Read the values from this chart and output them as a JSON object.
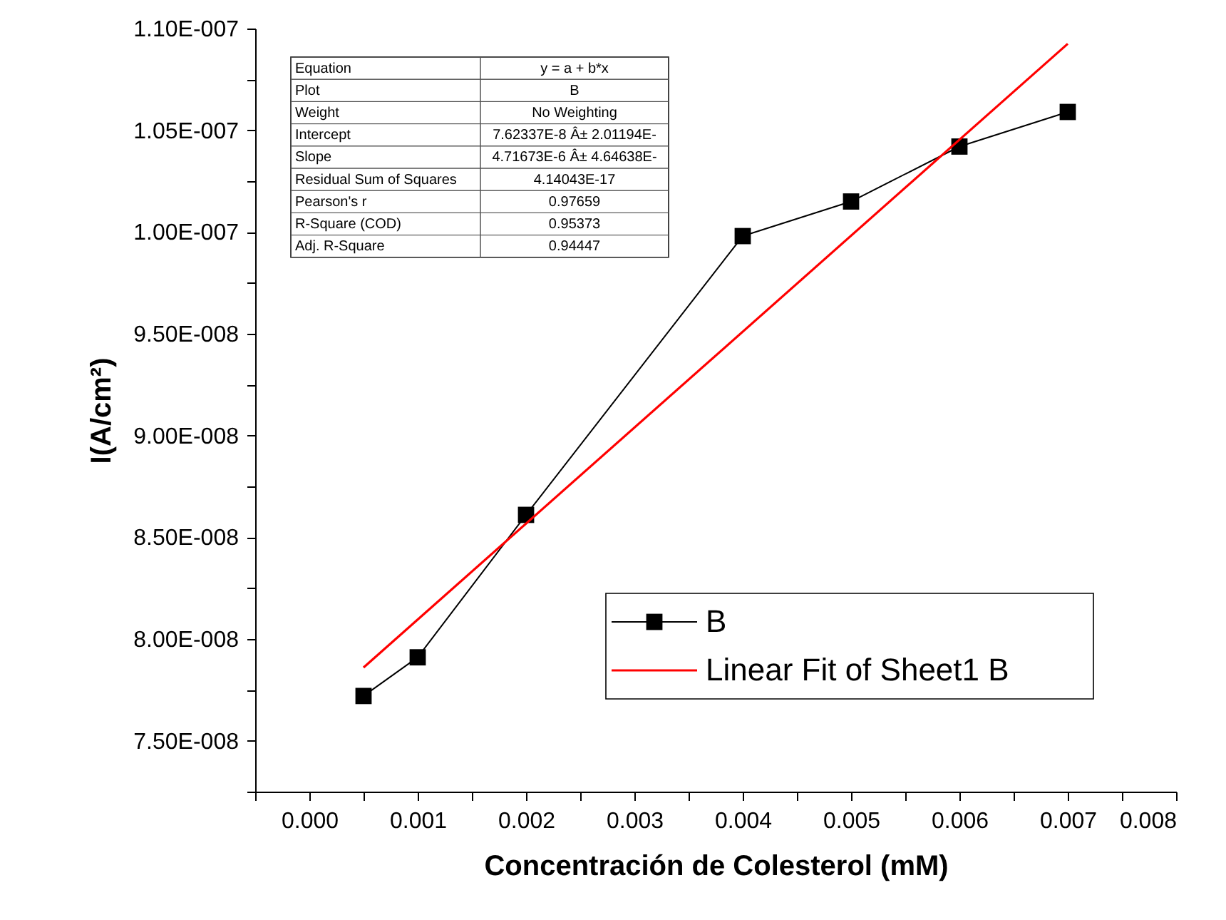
{
  "chart_data": {
    "type": "line",
    "xlabel": "Concentración de Colesterol (mM)",
    "ylabel": "I(A/cm²)",
    "x": [
      0.0005,
      0.001,
      0.002,
      0.004,
      0.005,
      0.006,
      0.007
    ],
    "series": [
      {
        "name": "B",
        "color": "#000000",
        "values": [
          7.72e-08,
          7.91e-08,
          8.61e-08,
          9.98e-08,
          1.015e-07,
          1.042e-07,
          1.059e-07
        ],
        "marker": "square",
        "line_style": "solid"
      },
      {
        "name": "Linear Fit of Sheet1 B",
        "color": "#ff0000",
        "type": "line",
        "x": [
          0.0005,
          0.007
        ],
        "values": [
          7.86e-08,
          1.0925e-07
        ],
        "marker": "none",
        "line_style": "solid"
      }
    ],
    "xlim": [
      -0.0005,
      0.008
    ],
    "xticks": [
      {
        "value": -0.0005,
        "label": null
      },
      {
        "value": 0,
        "label": "0.000"
      },
      {
        "value": 0.0005,
        "label": null
      },
      {
        "value": 0.001,
        "label": "0.001"
      },
      {
        "value": 0.0015,
        "label": null
      },
      {
        "value": 0.002,
        "label": "0.002"
      },
      {
        "value": 0.0025,
        "label": null
      },
      {
        "value": 0.003,
        "label": "0.003"
      },
      {
        "value": 0.0035,
        "label": null
      },
      {
        "value": 0.004,
        "label": "0.004"
      },
      {
        "value": 0.0045,
        "label": null
      },
      {
        "value": 0.005,
        "label": "0.005"
      },
      {
        "value": 0.0055,
        "label": null
      },
      {
        "value": 0.006,
        "label": "0.006"
      },
      {
        "value": 0.0065,
        "label": null
      },
      {
        "value": 0.007,
        "label": "0.007"
      },
      {
        "value": 0.0075,
        "label": null
      },
      {
        "value": 0.008,
        "label": "0.008"
      }
    ],
    "ylim": [
      7.25e-08,
      1.1e-07
    ],
    "yticks": [
      {
        "value": 7.25e-08,
        "label": null
      },
      {
        "value": 7.5e-08,
        "label": "7.50E-008"
      },
      {
        "value": 7.75e-08,
        "label": null
      },
      {
        "value": 8e-08,
        "label": "8.00E-008"
      },
      {
        "value": 8.25e-08,
        "label": null
      },
      {
        "value": 8.5e-08,
        "label": "8.50E-008"
      },
      {
        "value": 8.75e-08,
        "label": null
      },
      {
        "value": 9e-08,
        "label": "9.00E-008"
      },
      {
        "value": 9.25e-08,
        "label": null
      },
      {
        "value": 9.5e-08,
        "label": "9.50E-008"
      },
      {
        "value": 9.75e-08,
        "label": null
      },
      {
        "value": 1e-07,
        "label": "1.00E-007"
      },
      {
        "value": 1.025e-07,
        "label": null
      },
      {
        "value": 1.05e-07,
        "label": "1.05E-007"
      },
      {
        "value": 1.075e-07,
        "label": null
      },
      {
        "value": 1.1e-07,
        "label": "1.10E-007"
      }
    ],
    "grid": false,
    "legend": "bottom right",
    "annotations": [
      "Equation",
      "y = a + b*x",
      "Plot",
      "B",
      "Weight",
      "No Weighting",
      "Intercept",
      "7.62337E-8 Â± 2.01194E-",
      "Slope",
      "4.71673E-6 Â± 4.64638E-",
      "Residual Sum of Squares",
      "4.14043E-17",
      "Pearson's r",
      "0.97659",
      "R-Square (COD)",
      "0.95373",
      "Adj. R-Square",
      "0.94447"
    ]
  }
}
